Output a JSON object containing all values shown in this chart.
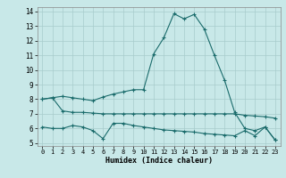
{
  "xlabel": "Humidex (Indice chaleur)",
  "background_color": "#c8e8e8",
  "grid_color": "#a8cccc",
  "line_color": "#1a6b6b",
  "xlim": [
    -0.5,
    23.5
  ],
  "ylim": [
    4.8,
    14.3
  ],
  "yticks": [
    5,
    6,
    7,
    8,
    9,
    10,
    11,
    12,
    13,
    14
  ],
  "xticks": [
    0,
    1,
    2,
    3,
    4,
    5,
    6,
    7,
    8,
    9,
    10,
    11,
    12,
    13,
    14,
    15,
    16,
    17,
    18,
    19,
    20,
    21,
    22,
    23
  ],
  "line1_x": [
    0,
    1,
    2,
    3,
    4,
    5,
    6,
    7,
    8,
    9,
    10,
    11,
    12,
    13,
    14,
    15,
    16,
    17,
    18,
    19,
    20,
    21,
    22,
    23
  ],
  "line1_y": [
    8.0,
    8.1,
    8.2,
    8.1,
    8.0,
    7.9,
    8.15,
    8.35,
    8.5,
    8.65,
    8.65,
    11.1,
    12.2,
    13.85,
    13.5,
    13.8,
    12.8,
    11.0,
    9.3,
    7.1,
    6.0,
    5.85,
    6.1,
    5.2
  ],
  "line2_x": [
    0,
    1,
    2,
    3,
    4,
    5,
    6,
    7,
    8,
    9,
    10,
    11,
    12,
    13,
    14,
    15,
    16,
    17,
    18,
    19,
    20,
    21,
    22,
    23
  ],
  "line2_y": [
    8.0,
    8.1,
    7.2,
    7.1,
    7.1,
    7.05,
    7.0,
    7.0,
    7.0,
    7.0,
    7.0,
    7.0,
    7.0,
    7.0,
    7.0,
    7.0,
    7.0,
    7.0,
    7.0,
    7.0,
    6.9,
    6.85,
    6.8,
    6.7
  ],
  "line3_x": [
    0,
    1,
    2,
    3,
    4,
    5,
    6,
    7,
    8,
    9,
    10,
    11,
    12,
    13,
    14,
    15,
    16,
    17,
    18,
    19,
    20,
    21,
    22,
    23
  ],
  "line3_y": [
    6.1,
    6.0,
    6.0,
    6.2,
    6.1,
    5.85,
    5.3,
    6.35,
    6.35,
    6.2,
    6.1,
    6.0,
    5.9,
    5.85,
    5.8,
    5.75,
    5.65,
    5.6,
    5.55,
    5.5,
    5.85,
    5.5,
    6.1,
    5.2
  ]
}
